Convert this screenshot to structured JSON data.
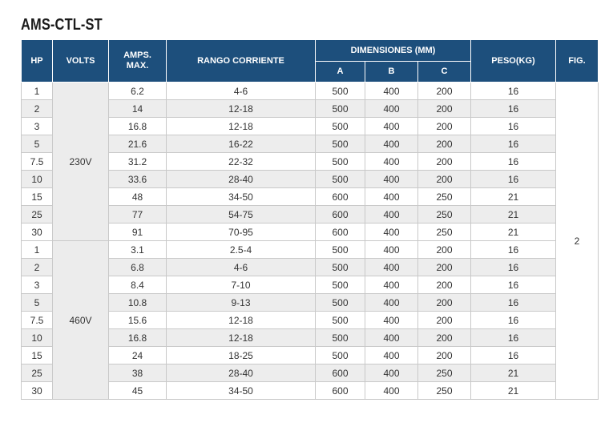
{
  "title": "AMS-CTL-ST",
  "headers": {
    "hp": "HP",
    "volts": "VOLTS",
    "amps_line1": "AMPS.",
    "amps_line2": "MAX.",
    "rango": "RANGO CORRIENTE",
    "dimensiones": "DIMENSIONES (MM)",
    "dim_a": "A",
    "dim_b": "B",
    "dim_c": "C",
    "peso": "PESO(KG)",
    "fig": "FIG."
  },
  "fig_value": "2",
  "groups": [
    {
      "volts": "230V",
      "rows": [
        {
          "hp": "1",
          "amps": "6.2",
          "rango": "4-6",
          "a": "500",
          "b": "400",
          "c": "200",
          "peso": "16"
        },
        {
          "hp": "2",
          "amps": "14",
          "rango": "12-18",
          "a": "500",
          "b": "400",
          "c": "200",
          "peso": "16"
        },
        {
          "hp": "3",
          "amps": "16.8",
          "rango": "12-18",
          "a": "500",
          "b": "400",
          "c": "200",
          "peso": "16"
        },
        {
          "hp": "5",
          "amps": "21.6",
          "rango": "16-22",
          "a": "500",
          "b": "400",
          "c": "200",
          "peso": "16"
        },
        {
          "hp": "7.5",
          "amps": "31.2",
          "rango": "22-32",
          "a": "500",
          "b": "400",
          "c": "200",
          "peso": "16"
        },
        {
          "hp": "10",
          "amps": "33.6",
          "rango": "28-40",
          "a": "500",
          "b": "400",
          "c": "200",
          "peso": "16"
        },
        {
          "hp": "15",
          "amps": "48",
          "rango": "34-50",
          "a": "600",
          "b": "400",
          "c": "250",
          "peso": "21"
        },
        {
          "hp": "25",
          "amps": "77",
          "rango": "54-75",
          "a": "600",
          "b": "400",
          "c": "250",
          "peso": "21"
        },
        {
          "hp": "30",
          "amps": "91",
          "rango": "70-95",
          "a": "600",
          "b": "400",
          "c": "250",
          "peso": "21"
        }
      ]
    },
    {
      "volts": "460V",
      "rows": [
        {
          "hp": "1",
          "amps": "3.1",
          "rango": "2.5-4",
          "a": "500",
          "b": "400",
          "c": "200",
          "peso": "16"
        },
        {
          "hp": "2",
          "amps": "6.8",
          "rango": "4-6",
          "a": "500",
          "b": "400",
          "c": "200",
          "peso": "16"
        },
        {
          "hp": "3",
          "amps": "8.4",
          "rango": "7-10",
          "a": "500",
          "b": "400",
          "c": "200",
          "peso": "16"
        },
        {
          "hp": "5",
          "amps": "10.8",
          "rango": "9-13",
          "a": "500",
          "b": "400",
          "c": "200",
          "peso": "16"
        },
        {
          "hp": "7.5",
          "amps": "15.6",
          "rango": "12-18",
          "a": "500",
          "b": "400",
          "c": "200",
          "peso": "16"
        },
        {
          "hp": "10",
          "amps": "16.8",
          "rango": "12-18",
          "a": "500",
          "b": "400",
          "c": "200",
          "peso": "16"
        },
        {
          "hp": "15",
          "amps": "24",
          "rango": "18-25",
          "a": "500",
          "b": "400",
          "c": "200",
          "peso": "16"
        },
        {
          "hp": "25",
          "amps": "38",
          "rango": "28-40",
          "a": "600",
          "b": "400",
          "c": "250",
          "peso": "21"
        },
        {
          "hp": "30",
          "amps": "45",
          "rango": "34-50",
          "a": "600",
          "b": "400",
          "c": "250",
          "peso": "21"
        }
      ]
    }
  ],
  "colors": {
    "header_bg": "#1d4f7c",
    "header_text": "#ffffff",
    "stripe": "#ededed"
  }
}
